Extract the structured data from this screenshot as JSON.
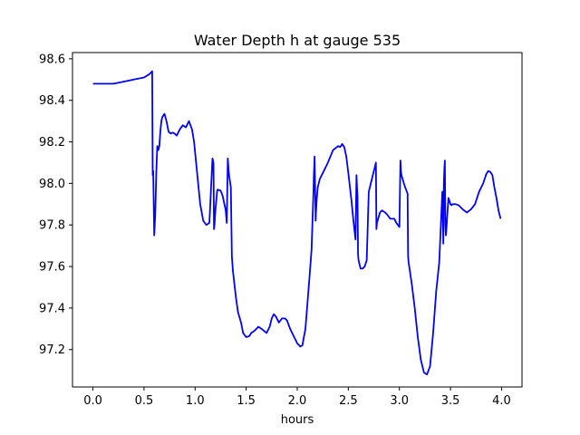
{
  "chart_data": {
    "type": "line",
    "title": "Water Depth h at gauge 535",
    "xlabel": "hours",
    "ylabel": "",
    "xlim": [
      -0.2,
      4.2
    ],
    "ylim": [
      97.02,
      98.63
    ],
    "xticks": [
      0.0,
      0.5,
      1.0,
      1.5,
      2.0,
      2.5,
      3.0,
      3.5,
      4.0
    ],
    "xtick_labels": [
      "0.0",
      "0.5",
      "1.0",
      "1.5",
      "2.0",
      "2.5",
      "3.0",
      "3.5",
      "4.0"
    ],
    "yticks": [
      97.2,
      97.4,
      97.6,
      97.8,
      98.0,
      98.2,
      98.4,
      98.6
    ],
    "ytick_labels": [
      "97.2",
      "97.4",
      "97.6",
      "97.8",
      "98.0",
      "98.2",
      "98.4",
      "98.6"
    ],
    "grid": false,
    "series_color": "#0000ff",
    "series": [
      {
        "x": [
          0.0,
          0.1,
          0.2,
          0.3,
          0.4,
          0.5,
          0.55,
          0.58,
          0.585,
          0.59,
          0.6,
          0.61,
          0.62,
          0.63,
          0.64,
          0.65,
          0.66,
          0.67,
          0.68,
          0.7,
          0.72,
          0.74,
          0.76,
          0.78,
          0.8,
          0.82,
          0.85,
          0.88,
          0.91,
          0.94,
          0.97,
          0.99,
          1.0,
          1.02,
          1.05,
          1.08,
          1.11,
          1.14,
          1.17,
          1.18,
          1.185,
          1.19,
          1.2,
          1.21,
          1.215,
          1.22,
          1.25,
          1.27,
          1.3,
          1.31,
          1.32,
          1.33,
          1.35,
          1.36,
          1.37,
          1.4,
          1.42,
          1.45,
          1.47,
          1.5,
          1.53,
          1.55,
          1.58,
          1.62,
          1.65,
          1.7,
          1.73,
          1.75,
          1.77,
          1.79,
          1.82,
          1.85,
          1.88,
          1.9,
          1.93,
          1.97,
          2.0,
          2.03,
          2.05,
          2.08,
          2.12,
          2.14,
          2.16,
          2.162,
          2.17,
          2.18,
          2.182,
          2.19,
          2.2,
          2.22,
          2.25,
          2.3,
          2.35,
          2.4,
          2.42,
          2.44,
          2.46,
          2.48,
          2.5,
          2.53,
          2.55,
          2.57,
          2.58,
          2.585,
          2.59,
          2.595,
          2.6,
          2.62,
          2.64,
          2.66,
          2.68,
          2.7,
          2.72,
          2.75,
          2.77,
          2.775,
          2.78,
          2.81,
          2.83,
          2.86,
          2.88,
          2.91,
          2.95,
          2.97,
          3.0,
          3.01,
          3.015,
          3.02,
          3.05,
          3.08,
          3.085,
          3.09,
          3.12,
          3.15,
          3.18,
          3.21,
          3.24,
          3.27,
          3.3,
          3.33,
          3.36,
          3.39,
          3.42,
          3.43,
          3.435,
          3.44,
          3.445,
          3.45,
          3.455,
          3.46,
          3.465,
          3.47,
          3.48,
          3.5,
          3.51,
          3.52,
          3.55,
          3.58,
          3.62,
          3.66,
          3.7,
          3.74,
          3.78,
          3.82,
          3.85,
          3.87,
          3.89,
          3.91,
          3.93,
          3.95,
          3.97,
          3.99
        ],
        "y": [
          98.48,
          98.48,
          98.48,
          98.49,
          98.5,
          98.51,
          98.525,
          98.54,
          98.04,
          98.06,
          97.75,
          97.85,
          98.05,
          98.18,
          98.16,
          98.18,
          98.25,
          98.3,
          98.32,
          98.335,
          98.3,
          98.25,
          98.24,
          98.245,
          98.24,
          98.23,
          98.26,
          98.28,
          98.27,
          98.3,
          98.26,
          98.2,
          98.15,
          98.05,
          97.9,
          97.82,
          97.8,
          97.81,
          98.12,
          98.1,
          97.78,
          97.8,
          97.88,
          97.93,
          97.96,
          97.97,
          97.965,
          97.94,
          97.87,
          97.81,
          98.12,
          98.05,
          97.98,
          97.65,
          97.58,
          97.45,
          97.38,
          97.33,
          97.28,
          97.26,
          97.265,
          97.28,
          97.29,
          97.31,
          97.3,
          97.28,
          97.31,
          97.35,
          97.37,
          97.36,
          97.33,
          97.35,
          97.35,
          97.34,
          97.3,
          97.26,
          97.23,
          97.215,
          97.22,
          97.3,
          97.55,
          97.68,
          97.98,
          98.03,
          98.13,
          97.82,
          97.85,
          97.92,
          97.98,
          98.02,
          98.05,
          98.1,
          98.16,
          98.18,
          98.175,
          98.19,
          98.175,
          98.13,
          98.05,
          97.92,
          97.82,
          97.73,
          98.04,
          97.98,
          97.94,
          97.66,
          97.63,
          97.59,
          97.59,
          97.6,
          97.63,
          97.96,
          98.0,
          98.06,
          98.1,
          97.78,
          97.81,
          97.86,
          97.87,
          97.86,
          97.85,
          97.83,
          97.83,
          97.81,
          97.79,
          98.11,
          98.06,
          98.04,
          97.99,
          97.95,
          97.65,
          97.62,
          97.52,
          97.4,
          97.26,
          97.15,
          97.09,
          97.08,
          97.12,
          97.28,
          97.48,
          97.62,
          97.96,
          97.71,
          98.0,
          98.07,
          98.11,
          97.8,
          97.75,
          97.78,
          97.82,
          97.86,
          97.93,
          97.9,
          97.895,
          97.9,
          97.9,
          97.895,
          97.875,
          97.86,
          97.875,
          97.9,
          97.96,
          98.0,
          98.045,
          98.06,
          98.055,
          98.04,
          97.98,
          97.93,
          97.87,
          97.83
        ]
      }
    ]
  }
}
